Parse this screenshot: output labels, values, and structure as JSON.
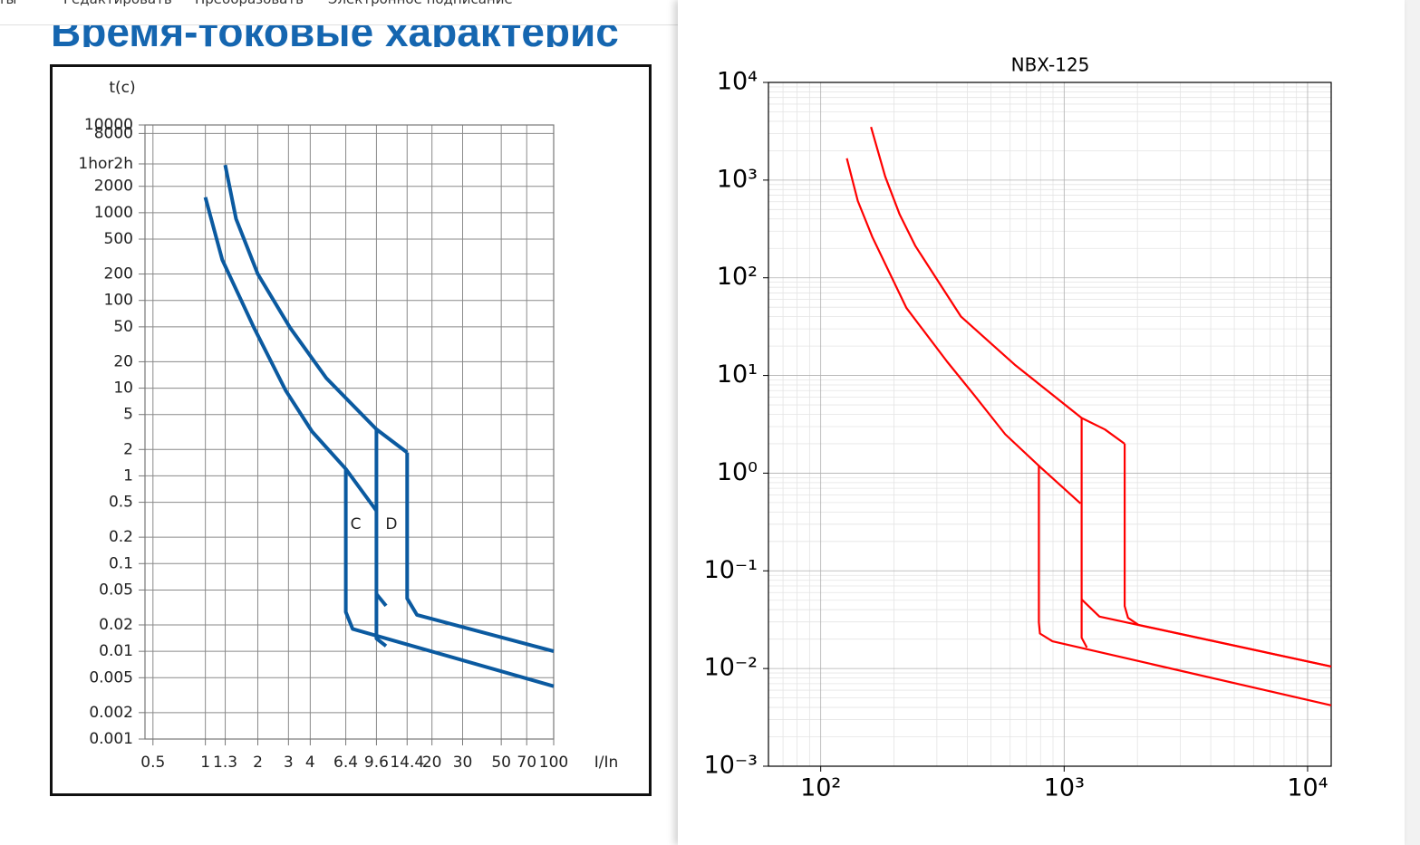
{
  "menu": [
    "нты",
    "Редактировать",
    "Преобразовать",
    "Электронное подписание"
  ],
  "heading": "Время-токовые характерис",
  "chart_data": [
    {
      "type": "line",
      "xlabel": "I/In",
      "ylabel": "t(c)",
      "log_x": true,
      "log_y": true,
      "grid": true,
      "color": "#0b5aa0",
      "xlim": [
        0.45,
        100
      ],
      "ylim": [
        0.001,
        10000
      ],
      "xticks": [
        0.5,
        1,
        1.3,
        2,
        3,
        4,
        6.4,
        9.6,
        14.4,
        20,
        30,
        50,
        70,
        100
      ],
      "yticks": [
        10000,
        8000,
        {
          "value": 3600,
          "label": "1hor2h"
        },
        2000,
        1000,
        500,
        200,
        100,
        50,
        20,
        10,
        5,
        2,
        1,
        0.5,
        0.2,
        0.1,
        0.05,
        0.02,
        0.01,
        0.005,
        0.002,
        0.001
      ],
      "annotations": [
        {
          "text": "C",
          "x": 7.3,
          "y": 0.28
        },
        {
          "text": "D",
          "x": 11.7,
          "y": 0.28
        }
      ],
      "series": [
        {
          "x": [
            1,
            1.25,
            1.9,
            2.9,
            4.1,
            6.4,
            9.6
          ],
          "values": [
            1500,
            290,
            49,
            9.3,
            3.2,
            1.2,
            0.4
          ]
        },
        {
          "x": [
            6.4,
            6.4,
            7,
            100
          ],
          "values": [
            1.2,
            0.028,
            0.018,
            0.004
          ]
        },
        {
          "x": [
            1.3,
            1.5,
            2.0,
            3.06,
            4.95,
            9.6,
            14.4
          ],
          "values": [
            3500,
            850,
            200,
            49,
            13,
            3.4,
            1.85
          ]
        },
        {
          "x": [
            14.4,
            14.4,
            16.4,
            100
          ],
          "values": [
            1.85,
            0.04,
            0.026,
            0.01
          ]
        },
        {
          "x": [
            9.6,
            9.6,
            10.9
          ],
          "values": [
            3.4,
            0.014,
            0.0115
          ]
        },
        {
          "x": [
            9.6,
            10.9
          ],
          "values": [
            0.045,
            0.033
          ]
        }
      ]
    },
    {
      "type": "line",
      "title": "NBX-125",
      "log_x": true,
      "log_y": true,
      "grid": true,
      "minor_grid": true,
      "color": "#ff0000",
      "xlim": [
        61,
        12500
      ],
      "ylim": [
        0.001,
        10000
      ],
      "xticks": [
        {
          "value": 100,
          "label": "10²"
        },
        {
          "value": 1000,
          "label": "10³"
        },
        {
          "value": 10000,
          "label": "10⁴"
        }
      ],
      "yticks": [
        {
          "value": 0.001,
          "label": "10⁻³"
        },
        {
          "value": 0.01,
          "label": "10⁻²"
        },
        {
          "value": 0.1,
          "label": "10⁻¹"
        },
        {
          "value": 1,
          "label": "10⁰"
        },
        {
          "value": 10,
          "label": "10¹"
        },
        {
          "value": 100,
          "label": "10²"
        },
        {
          "value": 1000,
          "label": "10³"
        },
        {
          "value": 10000,
          "label": "10⁴"
        }
      ],
      "series": [
        {
          "x": [
            128,
            142,
            163,
            225,
            331,
            428,
            573,
            787,
            1167
          ],
          "values": [
            1670,
            612,
            261,
            49,
            13.8,
            6.25,
            2.5,
            1.19,
            0.49
          ]
        },
        {
          "x": [
            787,
            787,
            795,
            895,
            12500
          ],
          "values": [
            1.19,
            0.0297,
            0.0228,
            0.019,
            0.0042
          ]
        },
        {
          "x": [
            1180,
            1180,
            1240
          ],
          "values": [
            3.67,
            0.0207,
            0.0164
          ]
        },
        {
          "x": [
            1180,
            1397,
            12500
          ],
          "values": [
            0.051,
            0.034,
            0.0105
          ]
        },
        {
          "x": [
            161,
            184,
            211,
            245,
            377,
            626,
            1180,
            1470,
            1773
          ],
          "values": [
            3500,
            1090,
            445,
            211,
            40,
            12.9,
            3.67,
            2.8,
            2.0
          ]
        },
        {
          "x": [
            1773,
            1773,
            1830,
            2020,
            12500
          ],
          "values": [
            2.0,
            0.0436,
            0.033,
            0.028,
            0.0105
          ]
        }
      ]
    }
  ]
}
